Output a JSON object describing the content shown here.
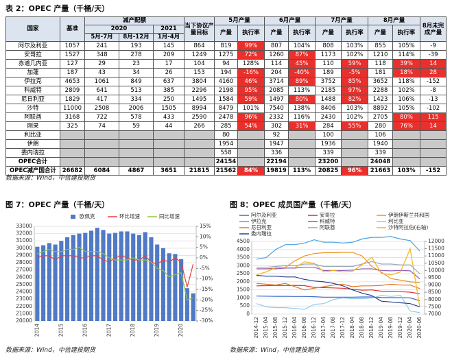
{
  "table": {
    "caption": "表 2：OPEC 产量（千桶/天）",
    "header": {
      "country": "国家",
      "base": "基准",
      "quota": "减产配额",
      "y2020": "2020",
      "y2021": "2021",
      "p1": "5月-7月",
      "p2": "8月-12月",
      "p3": "1月-4月",
      "target": "当下协议产量目标",
      "months": [
        "5月产量",
        "6月产量",
        "7月产量",
        "8月产量"
      ],
      "output": "产量",
      "rate": "执行率",
      "unfinished": "8月未完成产量"
    },
    "rows": [
      [
        "阿尔及利亚",
        "1057",
        "241",
        "193",
        "145",
        "864",
        "819",
        "99%",
        "807",
        "104%",
        "808",
        "103%",
        "855",
        "105%",
        "-9"
      ],
      [
        "安哥拉",
        "1527",
        "348",
        "278",
        "209",
        "1249",
        "1275",
        "72%",
        "1260",
        "87%",
        "1173",
        "102%",
        "1210",
        "114%",
        "-39"
      ],
      [
        "赤道几内亚",
        "127",
        "29",
        "23",
        "17",
        "104",
        "94",
        "128%",
        "114",
        "45%",
        "110",
        "59%",
        "118",
        "39%",
        "14"
      ],
      [
        "加蓬",
        "187",
        "43",
        "34",
        "26",
        "153",
        "194",
        "-16%",
        "204",
        "-40%",
        "189",
        "-5%",
        "181",
        "18%",
        "28"
      ],
      [
        "伊拉克",
        "4653",
        "1061",
        "849",
        "637",
        "3804",
        "4160",
        "46%",
        "3714",
        "89%",
        "3752",
        "85%",
        "3652",
        "118%",
        "-152"
      ],
      [
        "科威特",
        "2809",
        "641",
        "513",
        "385",
        "2296",
        "2198",
        "95%",
        "2085",
        "113%",
        "2185",
        "97%",
        "2288",
        "102%",
        "-8"
      ],
      [
        "尼日利亚",
        "1829",
        "417",
        "334",
        "250",
        "1495",
        "1584",
        "59%",
        "1497",
        "80%",
        "1488",
        "82%",
        "1423",
        "106%",
        "-13"
      ],
      [
        "沙特",
        "11000",
        "2508",
        "2006",
        "1505",
        "8994",
        "8479",
        "101%",
        "7540",
        "138%",
        "8406",
        "103%",
        "8892",
        "105%",
        "-102"
      ],
      [
        "阿联酋",
        "3168",
        "722",
        "578",
        "433",
        "2590",
        "2478",
        "96%",
        "2332",
        "116%",
        "2430",
        "102%",
        "2705",
        "80%",
        "115"
      ],
      [
        "刚果",
        "325",
        "74",
        "59",
        "44",
        "266",
        "285",
        "54%",
        "302",
        "31%",
        "284",
        "55%",
        "280",
        "76%",
        "14"
      ],
      [
        "利比亚",
        null,
        null,
        null,
        null,
        null,
        "80",
        null,
        "92",
        null,
        "100",
        null,
        "106",
        null,
        null
      ],
      [
        "伊朗",
        null,
        null,
        null,
        null,
        null,
        "1954",
        null,
        "1947",
        null,
        "1936",
        null,
        "1940",
        null,
        null
      ],
      [
        "委内瑞拉",
        null,
        null,
        null,
        null,
        null,
        "558",
        null,
        "336",
        null,
        "339",
        null,
        "339",
        null,
        null
      ],
      [
        "OPEC合计",
        null,
        null,
        null,
        null,
        null,
        "24154",
        null,
        "22194",
        null,
        "23200",
        null,
        "24048",
        null,
        null
      ],
      [
        "OPEC减产国合计",
        "26682",
        "6084",
        "4867",
        "3651",
        "21815",
        "21562",
        "84%",
        "19819",
        "113%",
        "20825",
        "96%",
        "21663",
        "103%",
        "-152"
      ]
    ],
    "source": "数据来源：Wind，中信建投期货"
  },
  "chart_data": [
    {
      "type": "combo",
      "title": "图 7：OPEC 产量（千桶/天）",
      "categories": [
        "2014",
        null,
        null,
        null,
        "2015",
        null,
        null,
        null,
        "2016",
        null,
        null,
        null,
        "2017",
        null,
        null,
        null,
        "2018",
        null,
        null,
        null,
        "2019",
        null,
        null,
        null,
        "2020",
        null,
        null
      ],
      "series": [
        {
          "name": "欧佩克",
          "type": "bar",
          "color": "#5079c6",
          "values": [
            30200,
            30400,
            30700,
            30500,
            31000,
            31500,
            31800,
            32000,
            32100,
            32400,
            32800,
            32500,
            32000,
            32100,
            32300,
            32300,
            32000,
            31800,
            32200,
            31500,
            30500,
            30000,
            29300,
            29200,
            28500,
            24500,
            23800
          ]
        },
        {
          "name": "环比增速",
          "type": "line",
          "axis": "y2",
          "color": "#e8403a",
          "values": [
            0,
            1,
            1,
            -1,
            1,
            1,
            1,
            0,
            0,
            1,
            1,
            -1,
            -2,
            0,
            1,
            0,
            -1,
            -1,
            1,
            -2,
            -3,
            -1,
            -2,
            0,
            -2,
            -14,
            -3
          ]
        },
        {
          "name": "同比增速",
          "type": "line",
          "axis": "y2",
          "color": "#8cc63f",
          "values": [
            2,
            3,
            4,
            3,
            3,
            4,
            4,
            5,
            3,
            3,
            3,
            2,
            0,
            -1,
            -1,
            -1,
            0,
            -1,
            -1,
            -2,
            -5,
            -6,
            -9,
            -8,
            -7,
            -20,
            -19
          ]
        }
      ],
      "ylim": [
        20000,
        33000
      ],
      "yticks": [
        20000,
        21000,
        22000,
        23000,
        24000,
        25000,
        26000,
        27000,
        28000,
        29000,
        30000,
        31000,
        32000,
        33000
      ],
      "y2lim": [
        -30,
        15
      ],
      "y2ticks": [
        {
          "value": 15,
          "label": "15%"
        },
        {
          "value": 10,
          "label": "10%"
        },
        {
          "value": 5,
          "label": "5%"
        },
        {
          "value": 0,
          "label": "0%"
        },
        {
          "value": -5,
          "label": "-5%"
        },
        {
          "value": -10,
          "label": "-10%"
        },
        {
          "value": -15,
          "label": "-15%"
        },
        {
          "value": -20,
          "label": "-20%"
        },
        {
          "value": -25,
          "label": "-25%"
        },
        {
          "value": -30,
          "label": "-30%"
        }
      ],
      "source": "数据来源：Wind，中信建投期货"
    },
    {
      "type": "line",
      "title": "图 8：OPEC 成员国产量（千桶/天）",
      "categories": [
        "2014-12",
        "2015-04",
        "2015-08",
        "2015-12",
        "2016-04",
        "2016-08",
        "2016-12",
        "2017-04",
        "2017-08",
        "2017-12",
        "2018-04",
        "2018-08",
        "2018-12",
        "2019-04",
        "2019-08",
        "2019-12",
        "2020-04",
        "2020-06"
      ],
      "series": [
        {
          "name": "阿尔及利亚",
          "color": "#3d6fc4",
          "values": [
            1120,
            1110,
            1100,
            1100,
            1090,
            1090,
            1080,
            1050,
            1050,
            1050,
            1050,
            1060,
            1060,
            1030,
            1020,
            1020,
            1000,
            830
          ]
        },
        {
          "name": "安哥拉",
          "color": "#d9302c",
          "values": [
            1750,
            1760,
            1780,
            1770,
            1780,
            1760,
            1650,
            1640,
            1620,
            1600,
            1540,
            1480,
            1500,
            1420,
            1400,
            1390,
            1360,
            1260
          ]
        },
        {
          "name": "伊朗伊斯兰共和国",
          "color": "#f0901e",
          "values": [
            2800,
            2800,
            2850,
            2900,
            3300,
            3600,
            3750,
            3800,
            3800,
            3820,
            3820,
            3600,
            2950,
            2600,
            2200,
            2100,
            2000,
            1950
          ]
        },
        {
          "name": "伊拉克",
          "color": "#4aa3df",
          "values": [
            3400,
            3500,
            4000,
            4300,
            4300,
            4400,
            4600,
            4450,
            4450,
            4400,
            4450,
            4650,
            4750,
            4750,
            4800,
            4650,
            4550,
            3900
          ]
        },
        {
          "name": "科威特",
          "color": "#8e5bb5",
          "values": [
            2800,
            2800,
            2800,
            2850,
            2850,
            2900,
            2900,
            2700,
            2700,
            2700,
            2720,
            2800,
            2800,
            2700,
            2680,
            2700,
            2680,
            2180
          ]
        },
        {
          "name": "利比亚",
          "color": "#8fc9ef",
          "values": [
            650,
            450,
            400,
            400,
            350,
            300,
            600,
            650,
            900,
            1000,
            950,
            950,
            1000,
            1150,
            1100,
            1150,
            200,
            90
          ]
        },
        {
          "name": "尼日利亚",
          "color": "#e0782a",
          "values": [
            1900,
            1850,
            1800,
            1900,
            1700,
            1500,
            1600,
            1700,
            1800,
            1850,
            1700,
            1750,
            1750,
            1780,
            1850,
            1800,
            1800,
            1580
          ]
        },
        {
          "name": "阿联酋",
          "color": "#9aa7b8",
          "values": [
            2900,
            2900,
            2950,
            3000,
            3000,
            3100,
            3100,
            2950,
            2950,
            2950,
            2950,
            3100,
            3250,
            3100,
            3100,
            3050,
            3050,
            2500
          ]
        },
        {
          "name": "沙特阿拉伯(右轴)",
          "color": "#f0b41e",
          "axis": "y2",
          "values": [
            9700,
            9900,
            10200,
            10200,
            10200,
            10600,
            10500,
            9900,
            10000,
            9900,
            9950,
            10400,
            10900,
            9800,
            9700,
            9900,
            11500,
            7500
          ]
        },
        {
          "name": "委内瑞拉",
          "color": "#2a3f8f",
          "values": [
            2400,
            2350,
            2350,
            2300,
            2300,
            2150,
            2050,
            2000,
            1900,
            1750,
            1500,
            1300,
            1150,
            800,
            750,
            700,
            650,
            450
          ]
        }
      ],
      "ylim": [
        0,
        4500
      ],
      "yticks": [
        0,
        500,
        1000,
        1500,
        2000,
        2500,
        3000,
        3500,
        4000,
        4500
      ],
      "y2lim": [
        7000,
        12000
      ],
      "y2ticks": [
        7000,
        7500,
        8000,
        8500,
        9000,
        9500,
        10000,
        10500,
        11000,
        11500,
        12000
      ],
      "source": "数据来源：Wind，中信建投期货"
    }
  ]
}
